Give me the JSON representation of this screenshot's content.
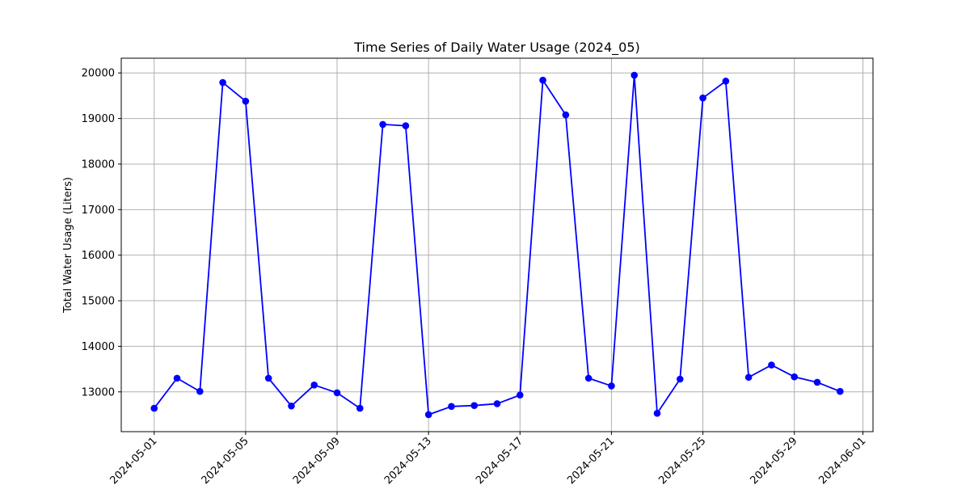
{
  "chart_data": {
    "type": "line",
    "title": "Time Series of Daily Water Usage (2024_05)",
    "xlabel": "",
    "ylabel": "Total Water Usage (Liters)",
    "x": [
      "2024-05-01",
      "2024-05-02",
      "2024-05-03",
      "2024-05-04",
      "2024-05-05",
      "2024-05-06",
      "2024-05-07",
      "2024-05-08",
      "2024-05-09",
      "2024-05-10",
      "2024-05-11",
      "2024-05-12",
      "2024-05-13",
      "2024-05-14",
      "2024-05-15",
      "2024-05-16",
      "2024-05-17",
      "2024-05-18",
      "2024-05-19",
      "2024-05-20",
      "2024-05-21",
      "2024-05-22",
      "2024-05-23",
      "2024-05-24",
      "2024-05-25",
      "2024-05-26",
      "2024-05-27",
      "2024-05-28",
      "2024-05-29",
      "2024-05-30",
      "2024-05-31"
    ],
    "series": [
      {
        "values": [
          12640,
          13300,
          13010,
          19790,
          19380,
          13300,
          12690,
          13150,
          12980,
          12640,
          18870,
          18840,
          12500,
          12680,
          12700,
          12740,
          12930,
          19840,
          19080,
          13300,
          13130,
          19950,
          12530,
          13280,
          19450,
          19820,
          13320,
          13590,
          13330,
          13210,
          13010
        ],
        "color": "#0000ff",
        "marker": "circle"
      }
    ],
    "xticks": [
      "2024-05-01",
      "2024-05-05",
      "2024-05-09",
      "2024-05-13",
      "2024-05-17",
      "2024-05-21",
      "2024-05-25",
      "2024-05-29",
      "2024-06-01"
    ],
    "yticks": [
      13000,
      14000,
      15000,
      16000,
      17000,
      18000,
      19000,
      20000
    ],
    "xlim": [
      "2024-04-29.56",
      "2024-06-01.44"
    ],
    "ylim": [
      12127,
      20323
    ],
    "grid": true,
    "legend": "none"
  }
}
